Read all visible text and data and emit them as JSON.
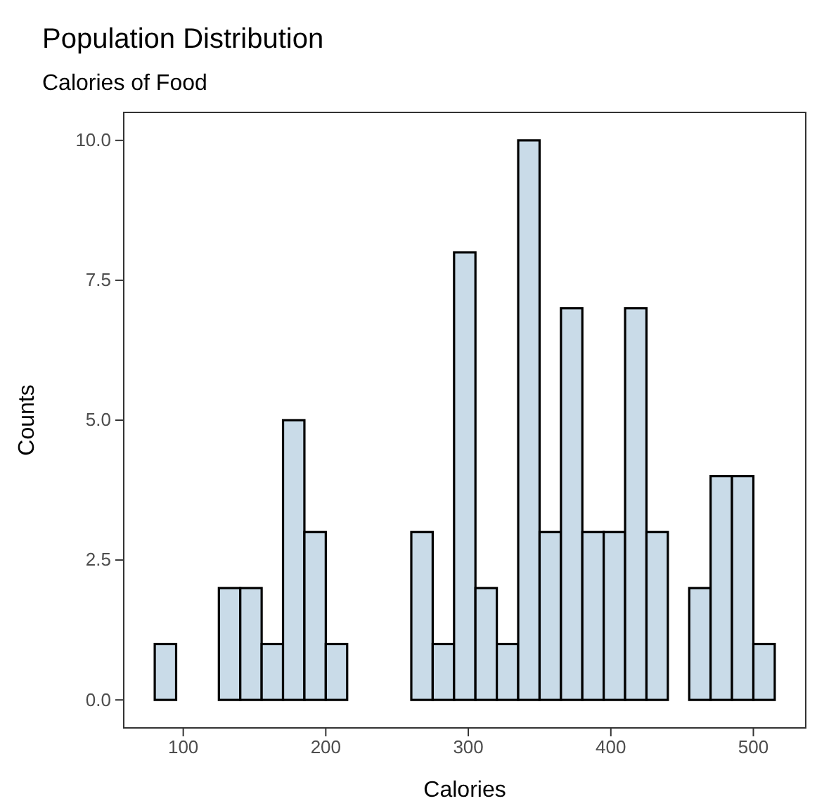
{
  "chart_data": {
    "type": "histogram",
    "title": "Population Distribution",
    "subtitle": "Calories of Food",
    "xlabel": "Calories",
    "ylabel": "Counts",
    "bins": [
      80,
      95,
      110,
      125,
      140,
      155,
      170,
      185,
      200,
      215,
      230,
      245,
      260,
      275,
      290,
      305,
      320,
      335,
      350,
      365,
      380,
      395,
      410,
      425,
      440,
      455,
      470,
      485,
      500,
      515
    ],
    "values": [
      1,
      0,
      0,
      2,
      2,
      1,
      5,
      3,
      1,
      0,
      0,
      0,
      3,
      1,
      8,
      2,
      1,
      10,
      3,
      7,
      3,
      3,
      7,
      3,
      0,
      2,
      4,
      4,
      1
    ],
    "color": "#c9dbe8",
    "xlim": [
      58.25,
      536.75
    ],
    "xticks": [
      100,
      200,
      300,
      400,
      500
    ],
    "ylim": [
      -0.5,
      10.5
    ],
    "yticks": [
      {
        "value": 0,
        "label": "0.0"
      },
      {
        "value": 2.5,
        "label": "2.5"
      },
      {
        "value": 5,
        "label": "5.0"
      },
      {
        "value": 7.5,
        "label": "7.5"
      },
      {
        "value": 10,
        "label": "10.0"
      }
    ],
    "grid": false
  }
}
